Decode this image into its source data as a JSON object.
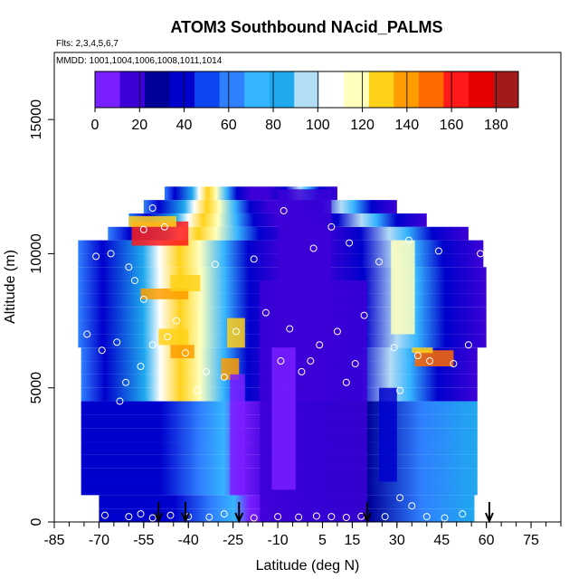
{
  "chart_data": {
    "type": "heatmap",
    "title": "ATOM3 Southbound NAcid_PALMS",
    "flights_label": "Flts: 2,3,4,5,6,7",
    "mmdd_label": "MMDD: 1001,1004,1006,1008,1011,1014",
    "xlabel": "Latitude (deg N)",
    "ylabel": "Altitude (m)",
    "xlim": [
      -85,
      85
    ],
    "ylim": [
      0,
      17500
    ],
    "x_ticks": [
      "-85",
      "-70",
      "-55",
      "-40",
      "-25",
      "-10",
      "5",
      "15",
      "30",
      "45",
      "60",
      "75"
    ],
    "x_tick_values": [
      -85,
      -70,
      -55,
      -40,
      -25,
      -10,
      5,
      15,
      30,
      45,
      60,
      75
    ],
    "y_ticks": [
      "0",
      "5000",
      "10000",
      "15000"
    ],
    "y_tick_values": [
      0,
      5000,
      10000,
      15000
    ],
    "colorbar": {
      "min": 0,
      "max": 190,
      "ticks": [
        "0",
        "20",
        "40",
        "60",
        "80",
        "100",
        "120",
        "140",
        "160",
        "180"
      ],
      "tick_values": [
        0,
        20,
        40,
        60,
        80,
        100,
        120,
        140,
        160,
        180
      ],
      "colors": [
        "#7a1fff",
        "#3c00d6",
        "#000099",
        "#0000cc",
        "#0b46f0",
        "#2f80ff",
        "#35b4ff",
        "#1ea8ee",
        "#b3dcf5",
        "#ffffff",
        "#ffffbd",
        "#ffd11a",
        "#ff9d00",
        "#ff6a00",
        "#ff1a1a",
        "#e60000",
        "#a31a1a"
      ]
    },
    "arrows_latitude": [
      -50,
      -41,
      -23,
      20,
      61
    ],
    "sample_points": [
      [
        -71,
        9900
      ],
      [
        -74,
        7000
      ],
      [
        -66,
        10000
      ],
      [
        -60,
        9500
      ],
      [
        -52,
        11700
      ],
      [
        -48,
        11000
      ],
      [
        -55,
        10900
      ],
      [
        -58,
        9000
      ],
      [
        -64,
        6700
      ],
      [
        -69,
        6400
      ],
      [
        -56,
        5800
      ],
      [
        -61,
        5200
      ],
      [
        -63,
        4500
      ],
      [
        -55,
        8300
      ],
      [
        -47,
        6900
      ],
      [
        -52,
        6600
      ],
      [
        -44,
        7500
      ],
      [
        -41,
        6300
      ],
      [
        -37,
        4900
      ],
      [
        -31,
        9600
      ],
      [
        -34,
        5600
      ],
      [
        -28,
        5400
      ],
      [
        -24,
        7100
      ],
      [
        -18,
        9800
      ],
      [
        -14,
        7800
      ],
      [
        -9,
        6000
      ],
      [
        -6,
        7200
      ],
      [
        -2,
        5600
      ],
      [
        1,
        6000
      ],
      [
        4,
        6600
      ],
      [
        10,
        7100
      ],
      [
        13,
        5200
      ],
      [
        16,
        5900
      ],
      [
        19,
        7700
      ],
      [
        24,
        9700
      ],
      [
        29,
        6500
      ],
      [
        31,
        4900
      ],
      [
        34,
        10500
      ],
      [
        37,
        6200
      ],
      [
        41,
        6000
      ],
      [
        44,
        10100
      ],
      [
        49,
        5900
      ],
      [
        54,
        6600
      ],
      [
        58,
        10000
      ],
      [
        60,
        5200
      ],
      [
        62,
        7800
      ],
      [
        -8,
        11600
      ],
      [
        2,
        10200
      ],
      [
        8,
        11000
      ],
      [
        14,
        10400
      ],
      [
        -56,
        300
      ],
      [
        -52,
        150
      ],
      [
        -46,
        250
      ],
      [
        -40,
        200
      ],
      [
        -33,
        180
      ],
      [
        -28,
        300
      ],
      [
        -18,
        150
      ],
      [
        -10,
        200
      ],
      [
        -3,
        180
      ],
      [
        3,
        220
      ],
      [
        8,
        200
      ],
      [
        13,
        170
      ],
      [
        18,
        210
      ],
      [
        26,
        200
      ],
      [
        31,
        900
      ],
      [
        35,
        600
      ],
      [
        40,
        200
      ],
      [
        46,
        150
      ],
      [
        52,
        300
      ],
      [
        -68,
        250
      ],
      [
        -60,
        200
      ]
    ]
  }
}
